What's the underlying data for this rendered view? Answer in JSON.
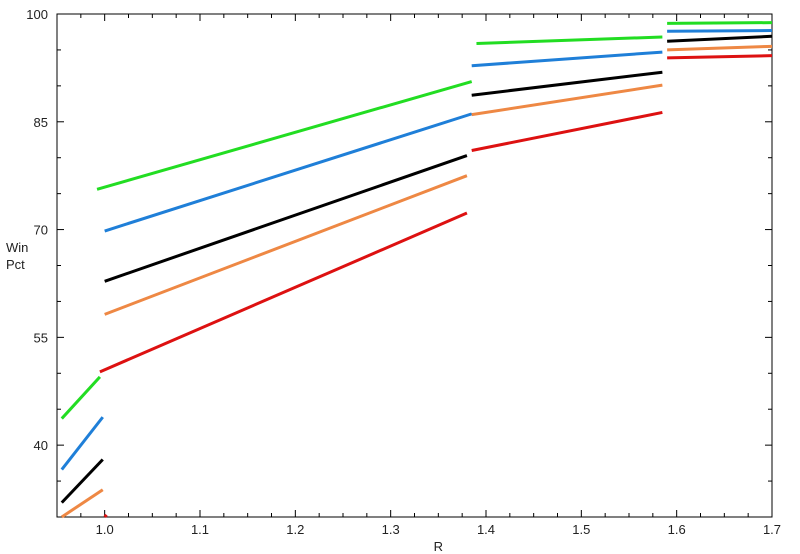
{
  "chart_data": {
    "type": "line",
    "title": "",
    "xlabel": "R",
    "ylabel": [
      "Win",
      "Pct"
    ],
    "xlim": [
      0.95,
      1.7
    ],
    "ylim": [
      30,
      100
    ],
    "xticks": [
      "1.0",
      "1.1",
      "1.2",
      "1.3",
      "1.4",
      "1.5",
      "1.6",
      "1.7"
    ],
    "xtick_values": [
      1.0,
      1.1,
      1.2,
      1.3,
      1.4,
      1.5,
      1.6,
      1.7
    ],
    "yticks": [
      "40",
      "55",
      "70",
      "85",
      "100"
    ],
    "ytick_values": [
      40,
      55,
      70,
      85,
      100
    ],
    "grid": false,
    "legend": "none",
    "series": [
      {
        "color": "#22dd22",
        "segments": [
          {
            "x": [
              0.955,
              0.995
            ],
            "y": [
              43.7,
              49.5
            ]
          },
          {
            "x": [
              0.992,
              1.385
            ],
            "y": [
              75.6,
              90.6
            ]
          },
          {
            "x": [
              1.39,
              1.585
            ],
            "y": [
              95.9,
              96.8
            ]
          },
          {
            "x": [
              1.59,
              1.7
            ],
            "y": [
              98.7,
              98.8
            ]
          }
        ]
      },
      {
        "color": "#1f7fd8",
        "segments": [
          {
            "x": [
              0.955,
              0.998
            ],
            "y": [
              36.6,
              43.9
            ]
          },
          {
            "x": [
              1.0,
              1.385
            ],
            "y": [
              69.8,
              86.1
            ]
          },
          {
            "x": [
              1.385,
              1.585
            ],
            "y": [
              92.8,
              94.7
            ]
          },
          {
            "x": [
              1.59,
              1.7
            ],
            "y": [
              97.6,
              97.7
            ]
          }
        ]
      },
      {
        "color": "#000000",
        "segments": [
          {
            "x": [
              0.955,
              0.998
            ],
            "y": [
              32.0,
              38.0
            ]
          },
          {
            "x": [
              1.0,
              1.38
            ],
            "y": [
              62.8,
              80.3
            ]
          },
          {
            "x": [
              1.385,
              1.585
            ],
            "y": [
              88.7,
              91.9
            ]
          },
          {
            "x": [
              1.59,
              1.7
            ],
            "y": [
              96.2,
              96.9
            ]
          }
        ]
      },
      {
        "color": "#ee8844",
        "segments": [
          {
            "x": [
              0.955,
              0.998
            ],
            "y": [
              30.0,
              33.8
            ]
          },
          {
            "x": [
              1.0,
              1.38
            ],
            "y": [
              58.2,
              77.5
            ]
          },
          {
            "x": [
              1.385,
              1.585
            ],
            "y": [
              86.0,
              90.1
            ]
          },
          {
            "x": [
              1.59,
              1.7
            ],
            "y": [
              95.0,
              95.5
            ]
          }
        ]
      },
      {
        "color": "#dd1111",
        "segments": [
          {
            "x": [
              1.0,
              1.002
            ],
            "y": [
              30.0,
              30.3
            ]
          },
          {
            "x": [
              0.995,
              1.38
            ],
            "y": [
              50.2,
              72.3
            ]
          },
          {
            "x": [
              1.385,
              1.585
            ],
            "y": [
              81.0,
              86.3
            ]
          },
          {
            "x": [
              1.59,
              1.7
            ],
            "y": [
              93.9,
              94.2
            ]
          }
        ]
      }
    ]
  }
}
